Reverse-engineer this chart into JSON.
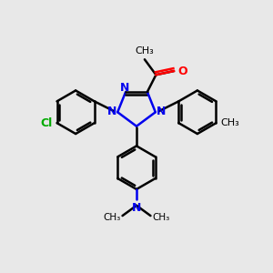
{
  "bg_color": "#e8e8e8",
  "bond_color": "black",
  "n_color": "#0000ee",
  "o_color": "#ff0000",
  "cl_color": "#00aa00",
  "line_width": 1.8,
  "font_size": 9,
  "xlim": [
    0,
    10
  ],
  "ylim": [
    0,
    10
  ]
}
